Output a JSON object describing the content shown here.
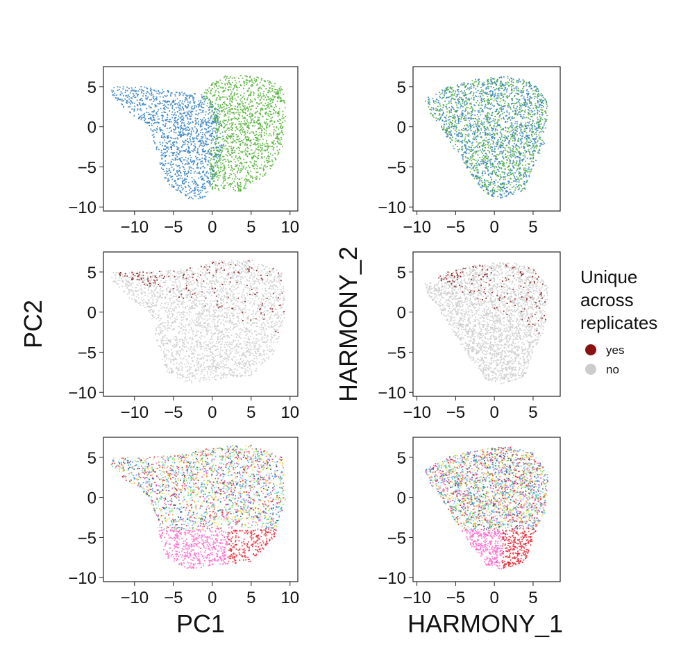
{
  "chart_data": [
    {
      "type": "scatter",
      "panel": "pca-replicate",
      "xlabel": "",
      "ylabel": "",
      "xlim": [
        -14,
        11
      ],
      "ylim": [
        -10.5,
        7.5
      ],
      "xticks": [
        -10,
        -5,
        0,
        5,
        10
      ],
      "yticks": [
        5,
        0,
        -5,
        -10
      ],
      "point_coloring": "replicate",
      "colors": [
        "#2f7fbf",
        "#4cb02f"
      ]
    },
    {
      "type": "scatter",
      "panel": "harmony-replicate",
      "xlabel": "",
      "ylabel": "",
      "xlim": [
        -10.5,
        8.5
      ],
      "ylim": [
        -10.5,
        7.5
      ],
      "xticks": [
        -10,
        -5,
        0,
        5
      ],
      "yticks": [
        5,
        0,
        -5,
        -10
      ],
      "point_coloring": "replicate",
      "colors": [
        "#2f7fbf",
        "#4cb02f"
      ]
    },
    {
      "type": "scatter",
      "panel": "pca-unique",
      "xlabel": "",
      "ylabel": "PC2",
      "xlim": [
        -14,
        11
      ],
      "ylim": [
        -10.5,
        7.5
      ],
      "xticks": [
        -10,
        -5,
        0,
        5,
        10
      ],
      "yticks": [
        5,
        0,
        -5,
        -10
      ],
      "point_coloring": "unique"
    },
    {
      "type": "scatter",
      "panel": "harmony-unique",
      "xlabel": "",
      "ylabel": "HARMONY_2",
      "xlim": [
        -10.5,
        8.5
      ],
      "ylim": [
        -10.5,
        7.5
      ],
      "xticks": [
        -10,
        -5,
        0,
        5
      ],
      "yticks": [
        5,
        0,
        -5,
        -10
      ],
      "point_coloring": "unique"
    },
    {
      "type": "scatter",
      "panel": "pca-cluster",
      "xlabel": "PC1",
      "ylabel": "",
      "xlim": [
        -14,
        11
      ],
      "ylim": [
        -10.5,
        7.5
      ],
      "xticks": [
        -10,
        -5,
        0,
        5,
        10
      ],
      "yticks": [
        5,
        0,
        -5,
        -10
      ],
      "point_coloring": "cluster",
      "colors": [
        "#ff66cc",
        "#e8202e",
        "#2ec4b6",
        "#7be04a",
        "#4f8ff7",
        "#f2a83b",
        "#b5469a",
        "#1f4e5f",
        "#f7e84a",
        "#8fd9f5"
      ]
    },
    {
      "type": "scatter",
      "panel": "harmony-cluster",
      "xlabel": "HARMONY_1",
      "ylabel": "",
      "xlim": [
        -10.5,
        8.5
      ],
      "ylim": [
        -10.5,
        7.5
      ],
      "xticks": [
        -10,
        -5,
        0,
        5
      ],
      "yticks": [
        5,
        0,
        -5,
        -10
      ],
      "point_coloring": "cluster",
      "colors": [
        "#ff66cc",
        "#e8202e",
        "#2ec4b6",
        "#7be04a",
        "#4f8ff7",
        "#f2a83b",
        "#b5469a",
        "#1f4e5f",
        "#f7e84a",
        "#8fd9f5"
      ]
    }
  ],
  "legend": {
    "title_lines": [
      "Unique",
      "across",
      "replicates"
    ],
    "items": [
      {
        "label": "yes",
        "color": "#8b1010"
      },
      {
        "label": "no",
        "color": "#cccccc"
      }
    ],
    "placement": "right"
  }
}
